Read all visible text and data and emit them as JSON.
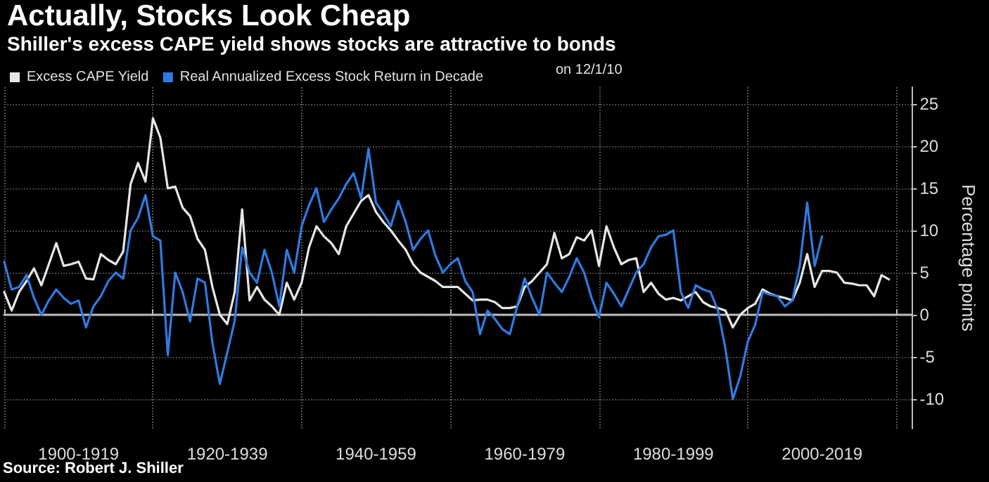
{
  "chart_data": {
    "type": "line",
    "title": "Actually, Stocks Look Cheap",
    "subtitle": "Shiller's excess CAPE yield shows stocks are attractive to bonds",
    "ylabel": "Percentage points",
    "annotations": [
      "on 12/1/10",
      "Source: Robert J. Shiller"
    ],
    "categories": [
      null,
      null,
      null,
      null,
      null,
      null,
      null,
      null,
      null,
      null,
      "1900-1919",
      null,
      null,
      null,
      null,
      null,
      null,
      null,
      null,
      null,
      null,
      null,
      null,
      null,
      null,
      null,
      null,
      null,
      null,
      null,
      "1920-1939",
      null,
      null,
      null,
      null,
      null,
      null,
      null,
      null,
      null,
      null,
      null,
      null,
      null,
      null,
      null,
      null,
      null,
      null,
      null,
      "1940-1959",
      null,
      null,
      null,
      null,
      null,
      null,
      null,
      null,
      null,
      null,
      null,
      null,
      null,
      null,
      null,
      null,
      null,
      null,
      null,
      "1960-1979",
      null,
      null,
      null,
      null,
      null,
      null,
      null,
      null,
      null,
      null,
      null,
      null,
      null,
      null,
      null,
      null,
      null,
      null,
      null,
      "1980-1999",
      null,
      null,
      null,
      null,
      null,
      null,
      null,
      null,
      null,
      null,
      null,
      null,
      null,
      null,
      null,
      null,
      null,
      null,
      null,
      "2000-2019",
      null,
      null,
      null,
      null,
      null,
      null,
      null,
      null,
      null,
      null,
      null,
      null
    ],
    "ylim": [
      -13.5,
      27
    ],
    "yticks": [
      -10,
      -5,
      0,
      5,
      10,
      15,
      20,
      25
    ],
    "grid": true,
    "legend": "top left",
    "series": [
      {
        "name": "Excess CAPE Yield",
        "color": "#e6e6e6",
        "values": [
          2.7,
          0.5,
          2.7,
          4,
          5.5,
          3.5,
          6,
          8.5,
          5.8,
          6,
          6.3,
          4.3,
          4.2,
          7.2,
          6.5,
          6,
          7.5,
          15.5,
          18,
          15.8,
          23.3,
          21,
          15,
          15.2,
          12.7,
          11.7,
          9,
          7.7,
          3.3,
          0,
          -1.1,
          2.7,
          12.5,
          1.7,
          3.3,
          1.8,
          1,
          0,
          3.8,
          1.8,
          3.8,
          8,
          10.5,
          9.3,
          8.5,
          7.2,
          10.5,
          12,
          13.5,
          14.2,
          12.2,
          11,
          10,
          8.8,
          7.7,
          6,
          5,
          4.5,
          4,
          3.3,
          3.3,
          3.3,
          2.5,
          1.7,
          1.8,
          1.8,
          1.5,
          0.8,
          0.8,
          1,
          3.3,
          4,
          5,
          6,
          9.7,
          6.7,
          7.2,
          9.2,
          8.8,
          10,
          5.8,
          10.5,
          8,
          6,
          6.5,
          6.7,
          2.7,
          3.8,
          2.5,
          1.8,
          2,
          1.7,
          2.2,
          2.7,
          1.5,
          1,
          0.8,
          0.5,
          -1.5,
          0,
          0.8,
          1.3,
          3,
          2.5,
          2.2,
          2,
          1.7,
          3.8,
          7.2,
          3.3,
          5.2,
          5.2,
          5,
          3.8,
          3.7,
          3.5,
          3.5,
          2.2,
          4.7,
          4.2,
          null,
          null,
          null
        ]
      },
      {
        "name": "Real Annualized Excess Stock Return in Decade",
        "color": "#2f7be0",
        "values": [
          6.3,
          3,
          3.3,
          4.7,
          2,
          0,
          1.7,
          3,
          2,
          1.3,
          1.7,
          -1.5,
          1,
          2.2,
          4,
          5,
          4.3,
          10,
          11.5,
          14.2,
          9.3,
          8.8,
          -4.8,
          5,
          2.7,
          -0.8,
          4.3,
          3.8,
          -3.3,
          -8.2,
          -4.5,
          -0.7,
          8,
          5,
          3.8,
          7.7,
          5,
          1,
          7.7,
          5,
          10.5,
          13,
          15,
          11,
          12.5,
          13.8,
          15.5,
          16.8,
          13.8,
          19.7,
          13.3,
          12,
          10.5,
          13.5,
          11,
          7.7,
          9,
          10,
          7,
          5,
          6,
          6.7,
          4,
          2.7,
          -2.3,
          0.5,
          -0.5,
          -1.7,
          -2.3,
          1,
          4.3,
          2,
          0,
          5,
          3.8,
          2.7,
          4.5,
          6.7,
          5,
          2,
          -0.3,
          3.8,
          2.5,
          1,
          3,
          5,
          6,
          8,
          9.3,
          9.5,
          10,
          2.7,
          0.8,
          3.5,
          3,
          2.7,
          0.5,
          -4,
          -10,
          -7.3,
          -3.2,
          -1.2,
          2.7,
          2.4,
          2.2,
          1,
          1.7,
          5.8,
          13.3,
          5.8,
          9.3,
          null,
          null,
          null,
          null,
          null,
          null,
          null,
          null,
          null,
          null,
          null,
          null
        ]
      }
    ]
  }
}
